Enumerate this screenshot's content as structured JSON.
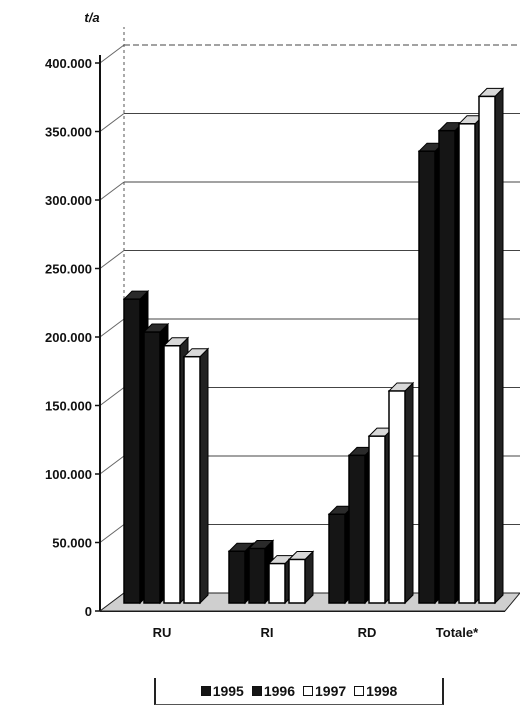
{
  "chart_data": {
    "type": "bar",
    "unit_label": "t/a",
    "categories": [
      "RU",
      "RI",
      "RD",
      "Totale*"
    ],
    "series": [
      {
        "name": "1995",
        "color": "#151515",
        "values": [
          232000,
          48000,
          75000,
          340000
        ]
      },
      {
        "name": "1996",
        "color": "#151515",
        "values": [
          208000,
          50000,
          118000,
          355000
        ]
      },
      {
        "name": "1997",
        "color": "#ffffff",
        "values": [
          198000,
          39000,
          132000,
          360000
        ]
      },
      {
        "name": "1998",
        "color": "#ffffff",
        "values": [
          190000,
          42000,
          165000,
          380000
        ]
      }
    ],
    "ylim": [
      0,
      400000
    ],
    "yticks": [
      "0",
      "50.000",
      "100.000",
      "150.000",
      "200.000",
      "250.000",
      "300.000",
      "350.000",
      "400.000"
    ],
    "grid": true,
    "legend_position": "bottom",
    "style": "3d-clustered"
  }
}
